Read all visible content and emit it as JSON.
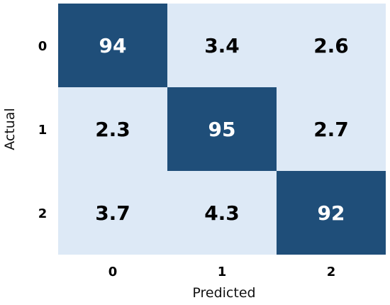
{
  "chart_data": {
    "type": "heatmap",
    "title": "",
    "xlabel": "Predicted",
    "ylabel": "Actual",
    "x_categories": [
      "0",
      "1",
      "2"
    ],
    "y_categories": [
      "0",
      "1",
      "2"
    ],
    "values": [
      [
        94,
        3.4,
        2.6
      ],
      [
        2.3,
        95,
        2.7
      ],
      [
        3.7,
        4.3,
        92
      ]
    ],
    "value_labels": [
      [
        "94",
        "3.4",
        "2.6"
      ],
      [
        "2.3",
        "95",
        "2.7"
      ],
      [
        "3.7",
        "4.3",
        "92"
      ]
    ],
    "colors": {
      "high": "#1f4e79",
      "low": "#dde9f6",
      "text_on_high": "#ffffff",
      "text_on_low": "#000000"
    },
    "colorbar": false,
    "grid": false
  }
}
